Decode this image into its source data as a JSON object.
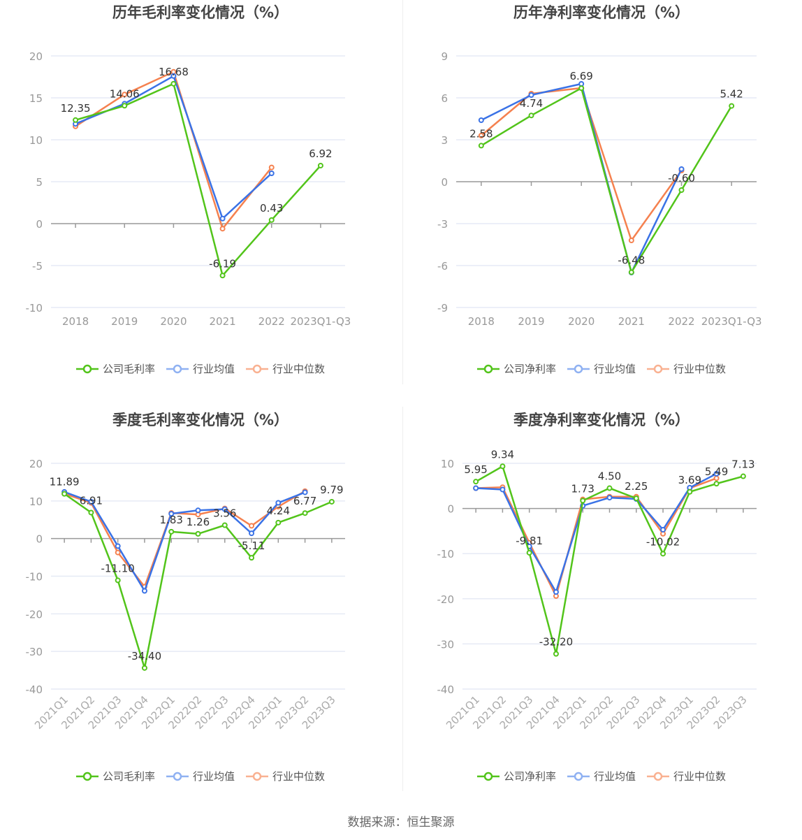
{
  "colors": {
    "company": "#52c41a",
    "avg": "#3a72e6",
    "median": "#f5814f",
    "company_light": "#7ad24f",
    "avg_light": "#8fb1f2",
    "median_light": "#f9b191"
  },
  "source": "数据来源：恒生聚源",
  "chart_data": [
    {
      "type": "line",
      "title": "历年毛利率变化情况（%）",
      "categories": [
        "2018",
        "2019",
        "2020",
        "2021",
        "2022",
        "2023Q1-Q3"
      ],
      "ylim": [
        -10,
        20
      ],
      "yticks": [
        -10,
        -5,
        0,
        5,
        10,
        15,
        20
      ],
      "legend_position": "bottom",
      "series": [
        {
          "name": "公司毛利率",
          "key": "company",
          "values": [
            12.35,
            14.06,
            16.68,
            -6.19,
            0.43,
            6.92
          ],
          "labels": [
            "12.35",
            "14.06",
            "16.68",
            "-6.19",
            "0.43",
            "6.92"
          ]
        },
        {
          "name": "行业均值",
          "key": "avg",
          "values": [
            11.9,
            14.3,
            17.6,
            0.6,
            6.0,
            null
          ]
        },
        {
          "name": "行业中位数",
          "key": "median",
          "values": [
            11.6,
            15.4,
            18.1,
            -0.6,
            6.7,
            null
          ]
        }
      ]
    },
    {
      "type": "line",
      "title": "历年净利率变化情况（%）",
      "categories": [
        "2018",
        "2019",
        "2020",
        "2021",
        "2022",
        "2023Q1-Q3"
      ],
      "ylim": [
        -9,
        9
      ],
      "yticks": [
        -9,
        -6,
        -3,
        0,
        3,
        6,
        9
      ],
      "legend_position": "bottom",
      "series": [
        {
          "name": "公司净利率",
          "key": "company",
          "values": [
            2.58,
            4.74,
            6.69,
            -6.48,
            -0.6,
            5.42
          ],
          "labels": [
            "2.58",
            "4.74",
            "6.69",
            "-6.48",
            "-0.60",
            "5.42"
          ]
        },
        {
          "name": "行业均值",
          "key": "avg",
          "values": [
            4.4,
            6.2,
            7.0,
            -6.5,
            0.9,
            null
          ]
        },
        {
          "name": "行业中位数",
          "key": "median",
          "values": [
            3.3,
            6.3,
            6.7,
            -4.2,
            0.8,
            null
          ]
        }
      ]
    },
    {
      "type": "line",
      "title": "季度毛利率变化情况（%）",
      "categories": [
        "2021Q1",
        "2021Q2",
        "2021Q3",
        "2021Q4",
        "2022Q1",
        "2022Q2",
        "2022Q3",
        "2022Q4",
        "2023Q1",
        "2023Q2",
        "2023Q3"
      ],
      "ylim": [
        -40,
        20
      ],
      "yticks": [
        -40,
        -30,
        -20,
        -10,
        0,
        10,
        20
      ],
      "legend_position": "bottom",
      "series": [
        {
          "name": "公司毛利率",
          "key": "company",
          "values": [
            11.89,
            6.91,
            -11.1,
            -34.4,
            1.83,
            1.26,
            3.56,
            -5.11,
            4.24,
            6.77,
            9.79
          ],
          "labels": [
            "11.89",
            "6.91",
            "-11.10",
            "-34.40",
            "1.83",
            "1.26",
            "3.56",
            "-5.11",
            "4.24",
            "6.77",
            "9.79"
          ]
        },
        {
          "name": "行业均值",
          "key": "avg",
          "values": [
            12.4,
            9.8,
            -2.0,
            -13.9,
            6.6,
            7.5,
            7.8,
            1.4,
            9.5,
            12.3,
            null
          ]
        },
        {
          "name": "行业中位数",
          "key": "median",
          "values": [
            11.9,
            9.5,
            -3.7,
            -12.8,
            6.8,
            6.4,
            8.0,
            3.4,
            8.5,
            12.6,
            null
          ]
        }
      ]
    },
    {
      "type": "line",
      "title": "季度净利率变化情况（%）",
      "categories": [
        "2021Q1",
        "2021Q2",
        "2021Q3",
        "2021Q4",
        "2022Q1",
        "2022Q2",
        "2022Q3",
        "2022Q4",
        "2023Q1",
        "2023Q2",
        "2023Q3"
      ],
      "ylim": [
        -40,
        10
      ],
      "yticks": [
        -40,
        -30,
        -20,
        -10,
        0,
        10
      ],
      "legend_position": "bottom",
      "series": [
        {
          "name": "公司净利率",
          "key": "company",
          "values": [
            5.95,
            9.34,
            -9.81,
            -32.2,
            1.73,
            4.5,
            2.25,
            -10.02,
            3.69,
            5.49,
            7.13
          ],
          "labels": [
            "5.95",
            "9.34",
            "-9.81",
            "-32.20",
            "1.73",
            "4.50",
            "2.25",
            "-10.02",
            "3.69",
            "5.49",
            "7.13"
          ]
        },
        {
          "name": "行业均值",
          "key": "avg",
          "values": [
            4.5,
            4.2,
            -8.4,
            -18.5,
            0.6,
            2.4,
            2.1,
            -4.7,
            4.6,
            7.7,
            null
          ]
        },
        {
          "name": "行业中位数",
          "key": "median",
          "values": [
            4.5,
            4.7,
            -7.6,
            -19.4,
            2.0,
            2.6,
            2.6,
            -5.6,
            4.5,
            6.7,
            null
          ]
        }
      ]
    }
  ]
}
